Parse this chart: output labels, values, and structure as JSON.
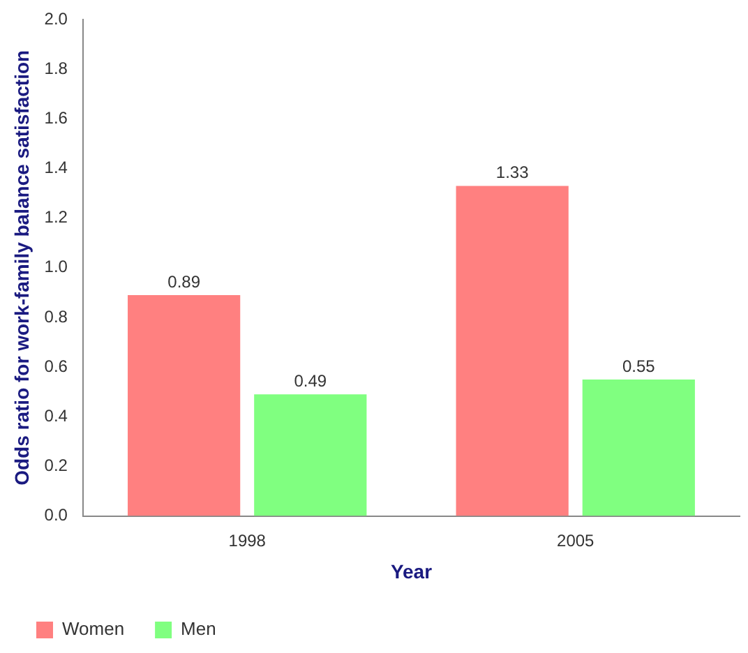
{
  "chart_data": {
    "type": "bar",
    "xlabel": "Year",
    "ylabel": "Odds ratio for work-family balance satisfaction",
    "categories": [
      "1998",
      "2005"
    ],
    "series": [
      {
        "name": "Women",
        "color": "#ff8080",
        "values": [
          0.89,
          1.33
        ]
      },
      {
        "name": "Men",
        "color": "#80ff80",
        "values": [
          0.49,
          0.55
        ]
      }
    ],
    "ylim": [
      0,
      2
    ],
    "yticks": [
      {
        "value": 0,
        "label": "0.0"
      },
      {
        "value": 0.2,
        "label": "0.2"
      },
      {
        "value": 0.4,
        "label": "0.4"
      },
      {
        "value": 0.6,
        "label": "0.6"
      },
      {
        "value": 0.8,
        "label": "0.8"
      },
      {
        "value": 1,
        "label": "1.0"
      },
      {
        "value": 1.2,
        "label": "1.2"
      },
      {
        "value": 1.4,
        "label": "1.4"
      },
      {
        "value": 1.6,
        "label": "1.6"
      },
      {
        "value": 1.8,
        "label": "1.8"
      },
      {
        "value": 2,
        "label": "2.0"
      }
    ],
    "data_labels": true,
    "grid": false,
    "legend": "bottom left"
  }
}
